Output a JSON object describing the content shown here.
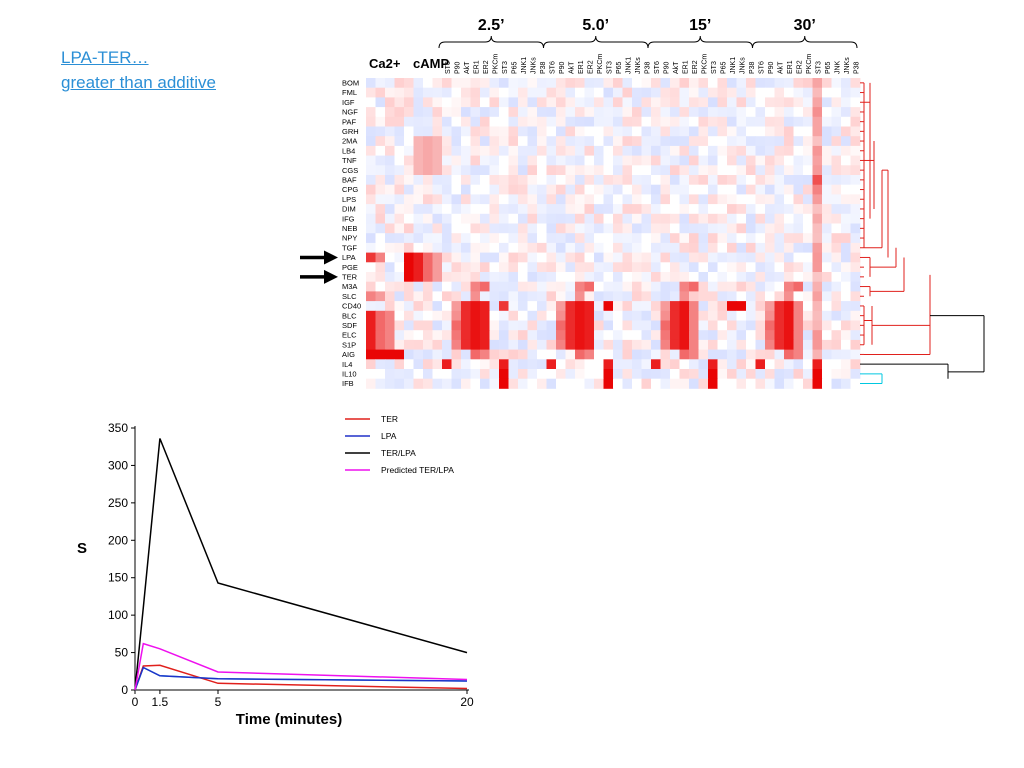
{
  "slide": {
    "title_line1": "LPA-TER…",
    "title_line2": "greater than additive"
  },
  "heatmap": {
    "group_labels": [
      "Ca2+",
      "cAMP"
    ],
    "time_labels": [
      "2.5’",
      "5.0’",
      "15’",
      "30’"
    ],
    "time_blocks": [
      {
        "label": "2.5’",
        "columns": [
          "ST6",
          "P90",
          "AkT",
          "ER1",
          "ER2",
          "PKCm",
          "ST3",
          "P65",
          "JNK1",
          "JNKs",
          "P38"
        ]
      },
      {
        "label": "5.0’",
        "columns": [
          "ST6",
          "P90",
          "AkT",
          "ER1",
          "ER2",
          "PKCm",
          "ST3",
          "P65",
          "JNK1",
          "JNKs",
          "P38"
        ]
      },
      {
        "label": "15’",
        "columns": [
          "ST6",
          "P90",
          "AkT",
          "ER1",
          "ER2",
          "PKCm",
          "ST3",
          "P65",
          "JNK1",
          "JNKs",
          "P38"
        ]
      },
      {
        "label": "30’",
        "columns": [
          "ST6",
          "P90",
          "AkT",
          "ER1",
          "ER2",
          "PKCm",
          "ST3",
          "P65",
          "JNK",
          "JNKs",
          "P38"
        ]
      }
    ],
    "rows": [
      "BOM",
      "FML",
      "IGF",
      "NGF",
      "PAF",
      "GRH",
      "2MA",
      "LB4",
      "TNF",
      "CGS",
      "BAF",
      "CPG",
      "LPS",
      "DIM",
      "IFG",
      "NEB",
      "NPY",
      "TGF",
      "LPA",
      "PGE",
      "TER",
      "M3A",
      "SLC",
      "CD40",
      "BLC",
      "SDF",
      "ELC",
      "S1P",
      "AIG",
      "IL4",
      "IL10",
      "IFB"
    ],
    "arrow_rows": [
      "LPA",
      "TER"
    ],
    "colors": {
      "strong": "#e8060f",
      "negative": "#5a6ad8",
      "tree_main": "#e0201c",
      "tree_black": "#000000",
      "tree_cyan": "#00c8e0"
    }
  },
  "chart_data": {
    "type": "line",
    "x_label": "Time (minutes)",
    "y_label": "S",
    "xlim": [
      0,
      20
    ],
    "ylim": [
      0,
      350
    ],
    "x_ticks": [
      "0",
      "1.5",
      "5",
      "20"
    ],
    "y_ticks": [
      "0",
      "50",
      "100",
      "150",
      "200",
      "250",
      "300",
      "350"
    ],
    "series": [
      {
        "name": "TER",
        "color": "#e0201c",
        "points": [
          [
            0,
            0
          ],
          [
            0.5,
            32
          ],
          [
            1.5,
            33
          ],
          [
            5,
            9
          ],
          [
            20,
            2
          ]
        ]
      },
      {
        "name": "LPA",
        "color": "#2030c8",
        "points": [
          [
            0,
            0
          ],
          [
            0.5,
            30
          ],
          [
            1.5,
            19
          ],
          [
            5,
            15
          ],
          [
            20,
            12
          ]
        ]
      },
      {
        "name": "TER/LPA",
        "color": "#000000",
        "points": [
          [
            0,
            0
          ],
          [
            0.5,
            110
          ],
          [
            1.5,
            336
          ],
          [
            5,
            143
          ],
          [
            20,
            50
          ]
        ]
      },
      {
        "name": "Predicted TER/LPA",
        "color": "#ee10ee",
        "points": [
          [
            0,
            0
          ],
          [
            0.5,
            62
          ],
          [
            1.5,
            55
          ],
          [
            5,
            24
          ],
          [
            20,
            14
          ]
        ]
      }
    ],
    "overlay_series": {
      "color": "#22d8ee",
      "points": [
        [
          0,
          0
        ],
        [
          0.5,
          30
        ],
        [
          1.5,
          19
        ],
        [
          5,
          15
        ],
        [
          20,
          12
        ]
      ]
    },
    "legend_placement": "right"
  }
}
